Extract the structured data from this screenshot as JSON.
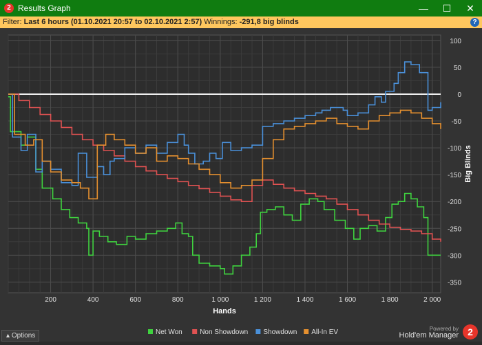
{
  "window": {
    "title": "Results Graph",
    "app_badge": "2",
    "minimize": "—",
    "maximize": "☐",
    "close": "✕"
  },
  "filter": {
    "prefix": "Filter:",
    "value": "Last 6 hours (01.10.2021 20:57 to 02.10.2021 2:57)",
    "winnings_label": "Winnings:",
    "winnings_value": "-291,8 big blinds",
    "help": "?"
  },
  "footer": {
    "options_label": "Options",
    "powered_by": "Powered by",
    "brand": "Hold'em Manager",
    "brand_badge": "2"
  },
  "chart_data": {
    "type": "line",
    "xlabel": "Hands",
    "ylabel": "Big Blinds",
    "xlim": [
      0,
      2040
    ],
    "ylim": [
      -370,
      110
    ],
    "x_ticks": [
      200,
      400,
      600,
      800,
      1000,
      1200,
      1400,
      1600,
      1800,
      2000
    ],
    "x_tick_labels": [
      "200",
      "400",
      "600",
      "800",
      "1 000",
      "1 200",
      "1 400",
      "1 600",
      "1 800",
      "2 000"
    ],
    "y_ticks": [
      100,
      50,
      0,
      -50,
      -100,
      -150,
      -200,
      -250,
      -300,
      -350
    ],
    "y_tick_labels": [
      "100",
      "50",
      "0",
      "-50",
      "-100",
      "-150",
      "-200",
      "-250",
      "-300",
      "-350"
    ],
    "grid": true,
    "legend_position": "bottom-center",
    "series": [
      {
        "name": "Net Won",
        "color": "#3fd23f",
        "x": [
          0,
          10,
          60,
          90,
          130,
          160,
          210,
          250,
          290,
          330,
          370,
          380,
          400,
          430,
          470,
          510,
          560,
          600,
          650,
          700,
          750,
          790,
          820,
          850,
          870,
          900,
          950,
          1000,
          1020,
          1060,
          1100,
          1140,
          1170,
          1190,
          1220,
          1260,
          1300,
          1340,
          1380,
          1420,
          1460,
          1490,
          1540,
          1590,
          1630,
          1660,
          1700,
          1740,
          1780,
          1810,
          1840,
          1870,
          1900,
          1930,
          1960,
          1980,
          2000,
          2040
        ],
        "y": [
          -5,
          -70,
          -95,
          -80,
          -140,
          -175,
          -195,
          -215,
          -230,
          -240,
          -250,
          -300,
          -255,
          -265,
          -275,
          -280,
          -265,
          -270,
          -260,
          -255,
          -250,
          -240,
          -260,
          -265,
          -300,
          -315,
          -320,
          -325,
          -335,
          -320,
          -300,
          -285,
          -260,
          -220,
          -215,
          -210,
          -225,
          -235,
          -205,
          -195,
          -200,
          -215,
          -235,
          -250,
          -270,
          -250,
          -245,
          -255,
          -230,
          -205,
          -200,
          -185,
          -195,
          -210,
          -230,
          -300,
          -300,
          -300
        ]
      },
      {
        "name": "Non Showdown",
        "color": "#e05252",
        "x": [
          0,
          50,
          100,
          150,
          200,
          250,
          300,
          350,
          400,
          450,
          500,
          550,
          600,
          650,
          700,
          750,
          800,
          850,
          900,
          950,
          1000,
          1050,
          1100,
          1150,
          1200,
          1250,
          1300,
          1350,
          1400,
          1450,
          1500,
          1550,
          1600,
          1650,
          1700,
          1750,
          1800,
          1850,
          1900,
          1950,
          2000,
          2040
        ],
        "y": [
          0,
          -12,
          -25,
          -38,
          -50,
          -62,
          -75,
          -85,
          -95,
          -105,
          -115,
          -125,
          -135,
          -143,
          -150,
          -157,
          -163,
          -170,
          -176,
          -183,
          -190,
          -197,
          -200,
          -170,
          -160,
          -168,
          -175,
          -180,
          -185,
          -190,
          -195,
          -205,
          -215,
          -225,
          -235,
          -242,
          -248,
          -252,
          -255,
          -260,
          -270,
          -275
        ]
      },
      {
        "name": "Showdown",
        "color": "#4a90d9",
        "x": [
          0,
          20,
          60,
          90,
          130,
          160,
          200,
          250,
          300,
          330,
          370,
          420,
          450,
          480,
          500,
          550,
          600,
          650,
          700,
          750,
          800,
          830,
          850,
          880,
          920,
          950,
          980,
          1010,
          1050,
          1100,
          1150,
          1200,
          1250,
          1300,
          1350,
          1400,
          1450,
          1480,
          1520,
          1580,
          1600,
          1650,
          1700,
          1730,
          1760,
          1780,
          1820,
          1840,
          1870,
          1900,
          1940,
          1980,
          2000,
          2040
        ],
        "y": [
          0,
          -80,
          -105,
          -75,
          -145,
          -125,
          -140,
          -165,
          -170,
          -110,
          -155,
          -135,
          -150,
          -125,
          -120,
          -100,
          -110,
          -95,
          -110,
          -90,
          -75,
          -95,
          -110,
          -130,
          -125,
          -110,
          -120,
          -90,
          -105,
          -100,
          -95,
          -60,
          -55,
          -50,
          -45,
          -40,
          -35,
          -30,
          -25,
          -30,
          -40,
          -35,
          -20,
          -5,
          -15,
          5,
          20,
          40,
          60,
          55,
          40,
          -30,
          -25,
          -15
        ]
      },
      {
        "name": "All-In EV",
        "color": "#e5902f",
        "x": [
          0,
          30,
          80,
          120,
          160,
          200,
          250,
          300,
          340,
          380,
          420,
          460,
          500,
          550,
          600,
          650,
          700,
          750,
          800,
          850,
          900,
          950,
          1000,
          1050,
          1100,
          1150,
          1200,
          1250,
          1300,
          1350,
          1400,
          1450,
          1500,
          1550,
          1600,
          1650,
          1700,
          1750,
          1800,
          1850,
          1900,
          1950,
          2000,
          2040
        ],
        "y": [
          0,
          -75,
          -95,
          -85,
          -125,
          -145,
          -160,
          -165,
          -175,
          -195,
          -95,
          -75,
          -85,
          -95,
          -110,
          -100,
          -125,
          -115,
          -120,
          -130,
          -140,
          -150,
          -165,
          -175,
          -170,
          -160,
          -120,
          -85,
          -65,
          -60,
          -55,
          -50,
          -45,
          -55,
          -60,
          -65,
          -50,
          -40,
          -35,
          -30,
          -35,
          -45,
          -55,
          -65
        ]
      }
    ]
  }
}
